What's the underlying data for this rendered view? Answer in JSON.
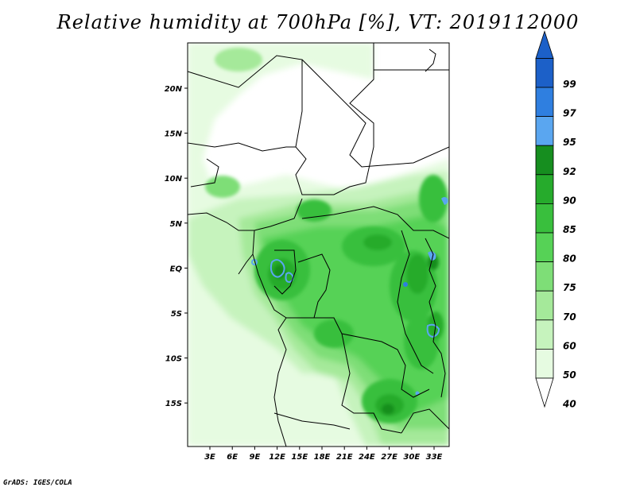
{
  "title": "Relative humidity at 700hPa [%], VT: 2019112000",
  "footer": "GrADS: IGES/COLA",
  "map": {
    "lon_labels": [
      "3E",
      "6E",
      "9E",
      "12E",
      "15E",
      "18E",
      "21E",
      "24E",
      "27E",
      "30E",
      "33E"
    ],
    "lat_labels": [
      "20N",
      "15N",
      "10N",
      "5N",
      "EQ",
      "5S",
      "10S",
      "15S"
    ]
  },
  "colorbar": {
    "levels": [
      "40",
      "50",
      "60",
      "70",
      "75",
      "80",
      "85",
      "90",
      "92",
      "95",
      "97",
      "99"
    ],
    "colors": [
      "#ffffff",
      "#e6fbe1",
      "#c6f3bd",
      "#a5e99a",
      "#7ede77",
      "#56d256",
      "#39bf3d",
      "#26ab2c",
      "#168e1f",
      "#5aa6f0",
      "#2f7fe0",
      "#1c60c8"
    ]
  }
}
